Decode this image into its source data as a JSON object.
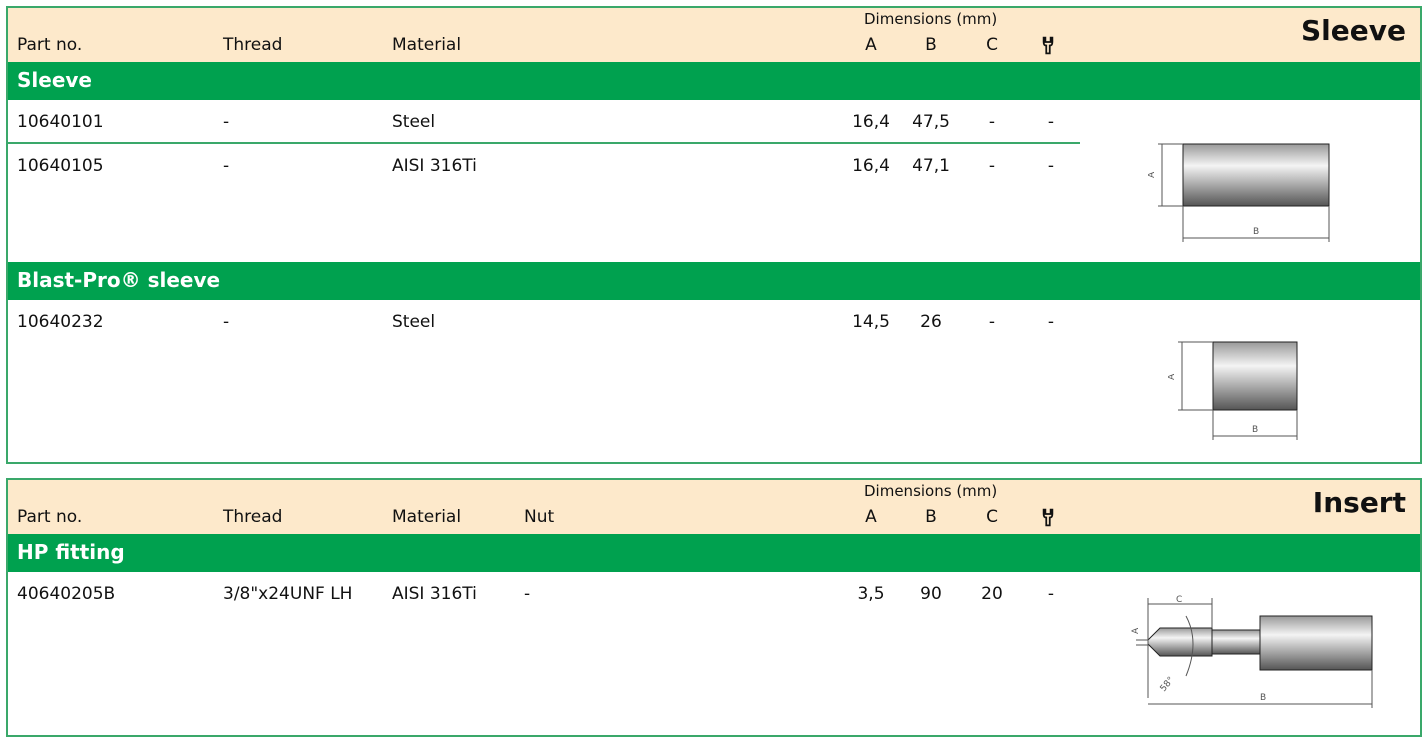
{
  "colors": {
    "accent_green": "#00a14f",
    "header_bg": "#fde9cb",
    "border": "#3aa86a"
  },
  "sleeve_table": {
    "title": "Sleeve",
    "headers": {
      "part_no": "Part no.",
      "thread": "Thread",
      "material": "Material",
      "dimensions": "Dimensions (mm)",
      "a": "A",
      "b": "B",
      "c": "C",
      "tool_icon": "wrench-icon"
    },
    "groups": [
      {
        "name": "Sleeve",
        "rows": [
          {
            "part_no": "10640101",
            "thread": "-",
            "material": "Steel",
            "a": "16,4",
            "b": "47,5",
            "c": "-",
            "tool": "-"
          },
          {
            "part_no": "10640105",
            "thread": "-",
            "material": "AISI 316Ti",
            "a": "16,4",
            "b": "47,1",
            "c": "-",
            "tool": "-"
          }
        ]
      },
      {
        "name": "Blast-Pro® sleeve",
        "rows": [
          {
            "part_no": "10640232",
            "thread": "-",
            "material": "Steel",
            "a": "14,5",
            "b": "26",
            "c": "-",
            "tool": "-"
          }
        ]
      }
    ],
    "drawing_labels": {
      "a": "A",
      "b": "B"
    }
  },
  "insert_table": {
    "title": "Insert",
    "headers": {
      "part_no": "Part no.",
      "thread": "Thread",
      "material": "Material",
      "nut": "Nut",
      "dimensions": "Dimensions (mm)",
      "a": "A",
      "b": "B",
      "c": "C",
      "tool_icon": "wrench-icon"
    },
    "groups": [
      {
        "name": "HP fitting",
        "rows": [
          {
            "part_no": "40640205B",
            "thread": "3/8\"x24UNF LH",
            "material": "AISI 316Ti",
            "nut": "-",
            "a": "3,5",
            "b": "90",
            "c": "20",
            "tool": "-"
          }
        ]
      }
    ],
    "drawing_labels": {
      "a": "A",
      "b": "B",
      "c": "C",
      "angle": "58°"
    }
  }
}
